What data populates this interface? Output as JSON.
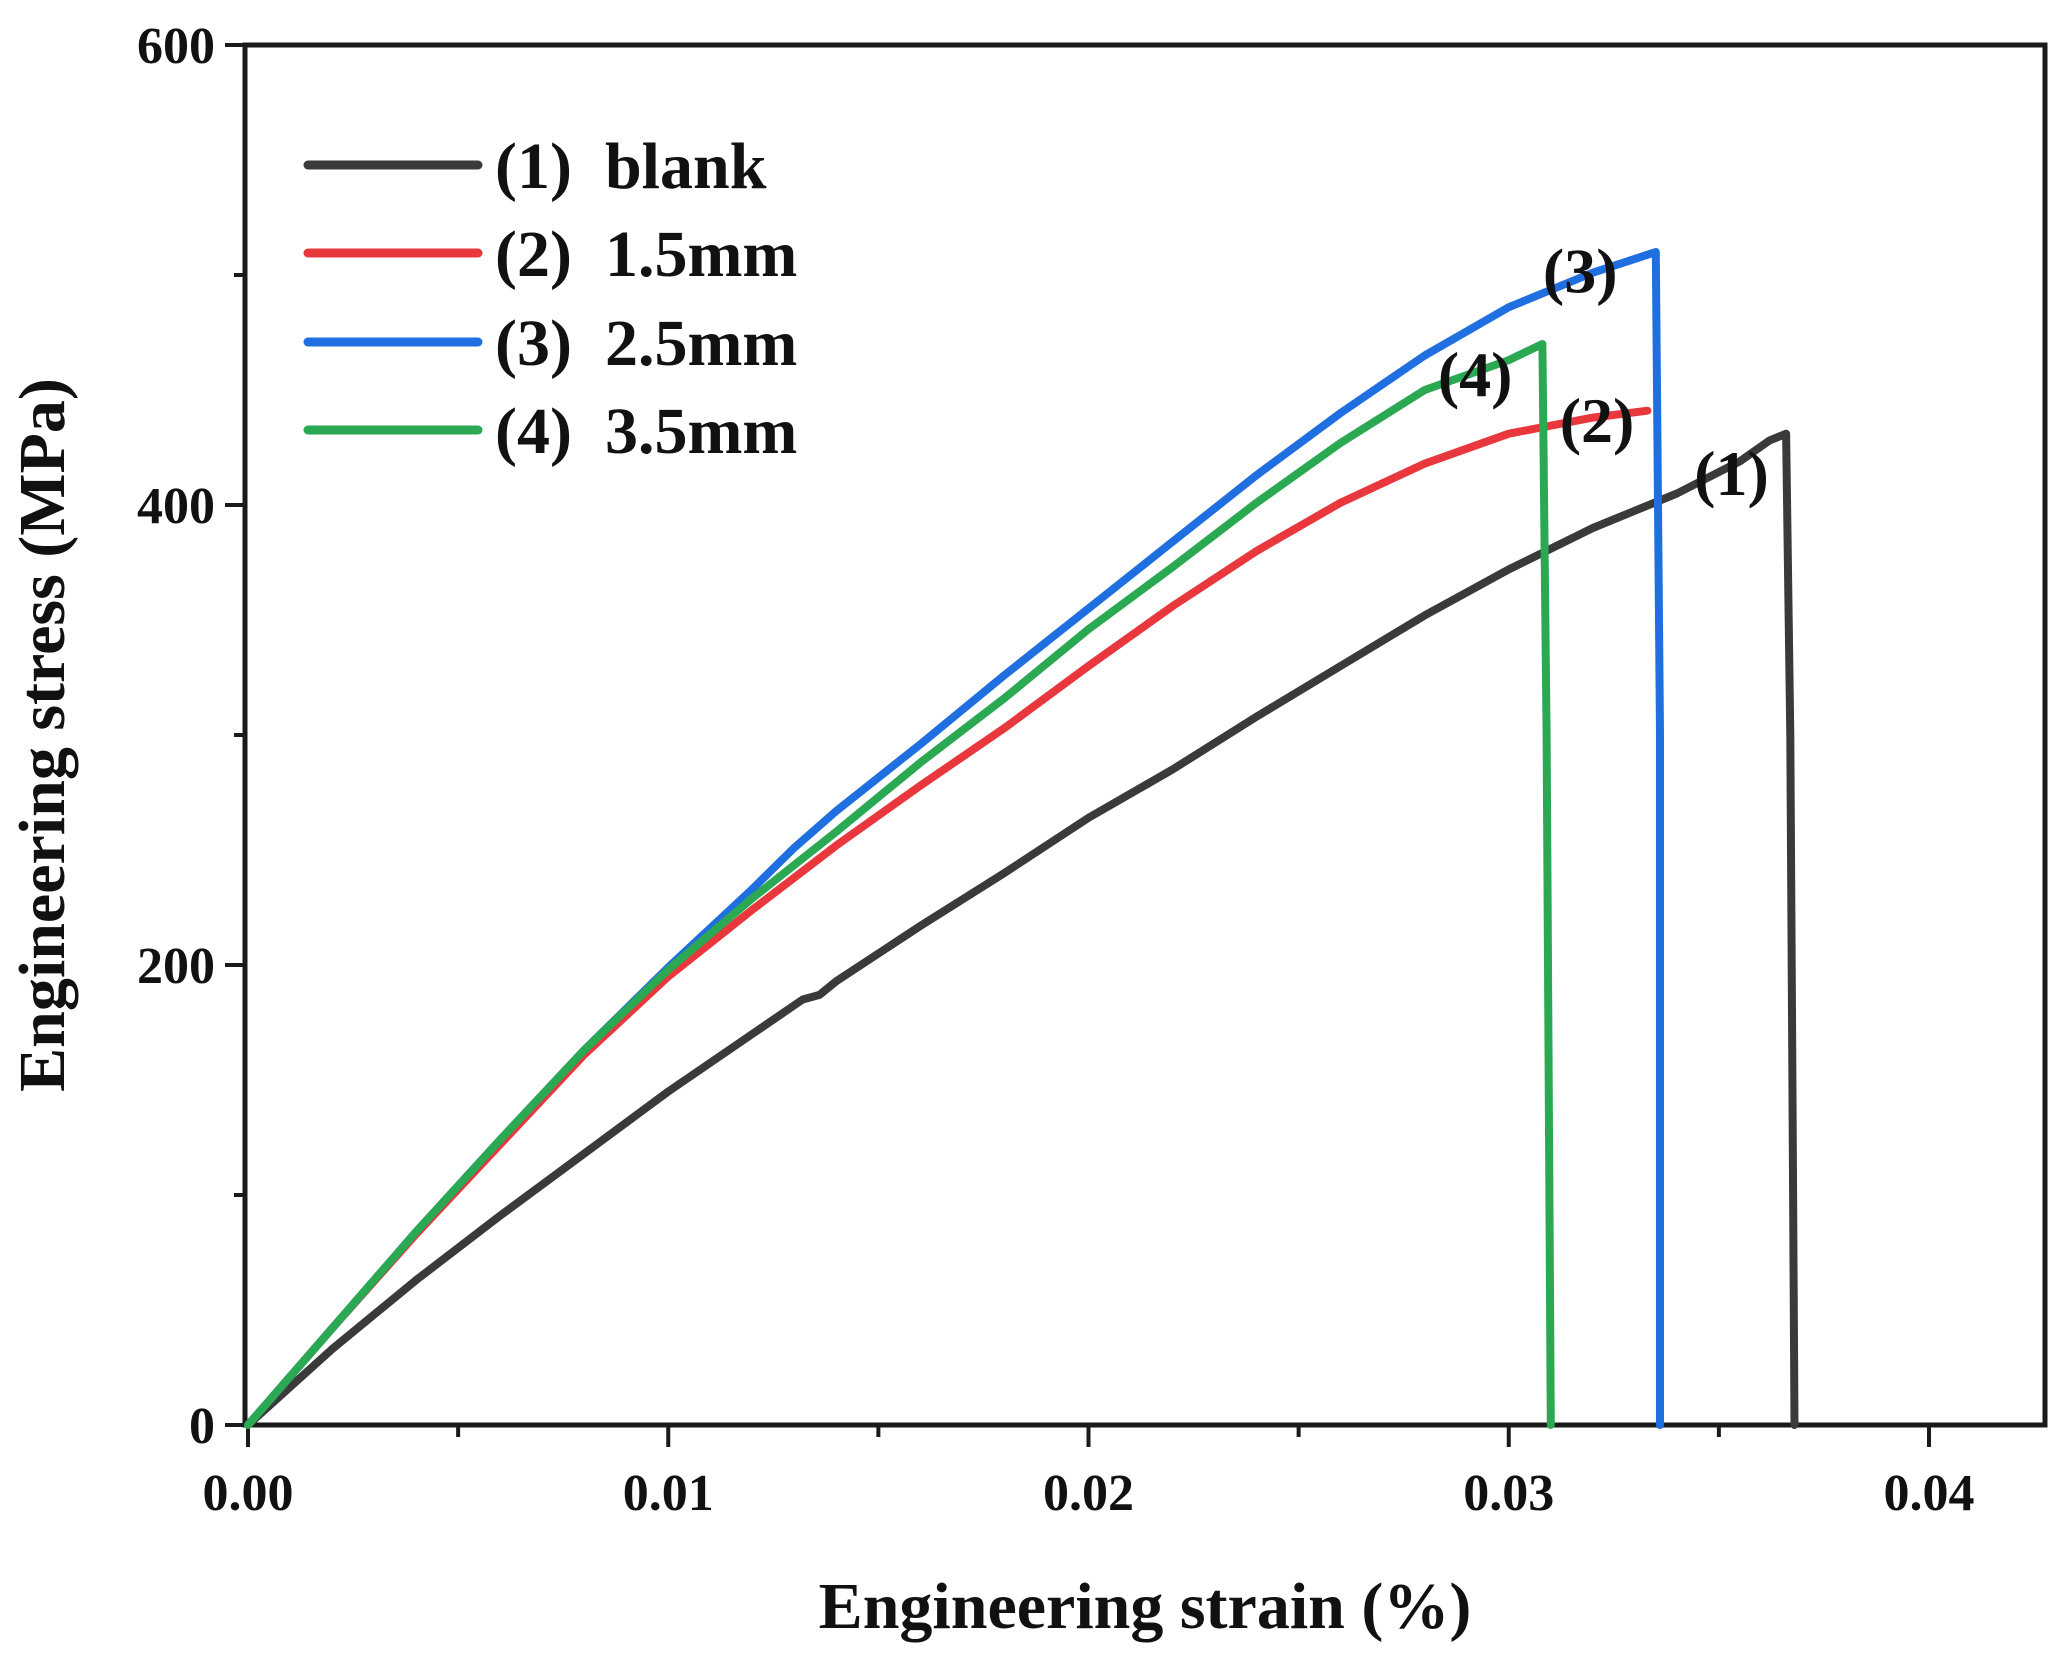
{
  "chart_data": {
    "type": "line",
    "title": "",
    "xlabel": "Engineering strain (%)",
    "ylabel": "Engineering stress (MPa)",
    "xlim": [
      0,
      0.0424
    ],
    "ylim": [
      0,
      600
    ],
    "x_ticks": [
      0,
      0.01,
      0.02,
      0.03,
      0.04
    ],
    "x_tick_labels": [
      "0.00",
      "0.01",
      "0.02",
      "0.03",
      "0.04"
    ],
    "y_ticks": [
      0,
      200,
      400,
      600
    ],
    "y_tick_labels": [
      "0",
      "200",
      "400",
      "600"
    ],
    "grid": false,
    "legend_position": "top-left",
    "series": [
      {
        "name": "blank",
        "tag": "(1)",
        "legend_label": "(1)  blank",
        "color": "#3a3a3a",
        "points": [
          [
            0,
            0
          ],
          [
            0.002,
            33
          ],
          [
            0.004,
            63
          ],
          [
            0.006,
            91
          ],
          [
            0.008,
            118
          ],
          [
            0.01,
            145
          ],
          [
            0.012,
            170
          ],
          [
            0.0132,
            185
          ],
          [
            0.0136,
            187
          ],
          [
            0.014,
            193
          ],
          [
            0.016,
            217
          ],
          [
            0.018,
            240
          ],
          [
            0.02,
            264
          ],
          [
            0.022,
            285
          ],
          [
            0.024,
            308
          ],
          [
            0.026,
            330
          ],
          [
            0.028,
            352
          ],
          [
            0.03,
            372
          ],
          [
            0.032,
            390
          ],
          [
            0.034,
            405
          ],
          [
            0.0355,
            419
          ],
          [
            0.0362,
            428
          ],
          [
            0.0366,
            431
          ],
          [
            0.0367,
            300
          ],
          [
            0.0368,
            0
          ]
        ]
      },
      {
        "name": "1.5mm",
        "tag": "(2)",
        "legend_label": "(2)  1.5mm",
        "color": "#e8383d",
        "points": [
          [
            0,
            0
          ],
          [
            0.002,
            42
          ],
          [
            0.004,
            83
          ],
          [
            0.006,
            122
          ],
          [
            0.008,
            161
          ],
          [
            0.01,
            195
          ],
          [
            0.012,
            224
          ],
          [
            0.014,
            252
          ],
          [
            0.016,
            278
          ],
          [
            0.018,
            303
          ],
          [
            0.02,
            330
          ],
          [
            0.022,
            356
          ],
          [
            0.024,
            380
          ],
          [
            0.026,
            401
          ],
          [
            0.028,
            418
          ],
          [
            0.03,
            431
          ],
          [
            0.032,
            438
          ],
          [
            0.0333,
            441
          ]
        ]
      },
      {
        "name": "2.5mm",
        "tag": "(3)",
        "legend_label": "(3)  2.5mm",
        "color": "#1f6fe0",
        "points": [
          [
            0,
            0
          ],
          [
            0.002,
            42
          ],
          [
            0.004,
            84
          ],
          [
            0.006,
            124
          ],
          [
            0.008,
            163
          ],
          [
            0.01,
            199
          ],
          [
            0.012,
            233
          ],
          [
            0.013,
            251
          ],
          [
            0.014,
            267
          ],
          [
            0.016,
            296
          ],
          [
            0.018,
            326
          ],
          [
            0.02,
            355
          ],
          [
            0.022,
            384
          ],
          [
            0.024,
            413
          ],
          [
            0.026,
            440
          ],
          [
            0.028,
            465
          ],
          [
            0.03,
            486
          ],
          [
            0.032,
            501
          ],
          [
            0.0335,
            510
          ],
          [
            0.0336,
            300
          ],
          [
            0.0336,
            0
          ]
        ]
      },
      {
        "name": "3.5mm",
        "tag": "(4)",
        "legend_label": "(4)  3.5mm",
        "color": "#2aa952",
        "points": [
          [
            0,
            0
          ],
          [
            0.002,
            42
          ],
          [
            0.004,
            84
          ],
          [
            0.006,
            124
          ],
          [
            0.008,
            163
          ],
          [
            0.01,
            198
          ],
          [
            0.012,
            229
          ],
          [
            0.014,
            258
          ],
          [
            0.016,
            288
          ],
          [
            0.018,
            316
          ],
          [
            0.02,
            346
          ],
          [
            0.022,
            373
          ],
          [
            0.024,
            401
          ],
          [
            0.026,
            427
          ],
          [
            0.028,
            450
          ],
          [
            0.03,
            463
          ],
          [
            0.0308,
            470
          ],
          [
            0.0309,
            300
          ],
          [
            0.031,
            0
          ]
        ]
      }
    ],
    "annotations": [
      {
        "text": "(3)",
        "x": 0.0317,
        "y": 502
      },
      {
        "text": "(4)",
        "x": 0.0292,
        "y": 457
      },
      {
        "text": "(2)",
        "x": 0.0321,
        "y": 437
      },
      {
        "text": "(1)",
        "x": 0.0353,
        "y": 414
      }
    ]
  }
}
